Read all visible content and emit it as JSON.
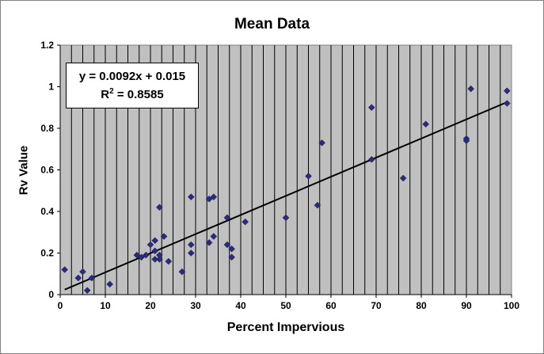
{
  "chart_data": {
    "type": "scatter",
    "title": "Mean Data",
    "xlabel": "Percent Impervious",
    "ylabel": "Rv Value",
    "xlim": [
      0,
      100
    ],
    "ylim": [
      0,
      1.2
    ],
    "x_ticks": [
      0,
      10,
      20,
      30,
      40,
      50,
      60,
      70,
      80,
      90,
      100
    ],
    "x_tick_labels": [
      "0",
      "10",
      "20",
      "30",
      "40",
      "50",
      "60",
      "70",
      "80",
      "90",
      "100"
    ],
    "y_ticks": [
      0,
      0.2,
      0.4,
      0.6,
      0.8,
      1.0,
      1.2
    ],
    "y_tick_labels": [
      "0",
      "0.2",
      "0.4",
      "0.6",
      "0.8",
      "1",
      "1.2"
    ],
    "grid": "vertical",
    "background_color": "#c0c0c0",
    "marker_color": "#2b2b7a",
    "trendline": {
      "equation": "y = 0.0092x + 0.015",
      "r_squared_label": "R",
      "r_squared_exponent": "2",
      "r_squared_value": " = 0.8585",
      "slope": 0.0092,
      "intercept": 0.015,
      "x_range": [
        1,
        99
      ]
    },
    "points": [
      {
        "x": 1,
        "y": 0.12
      },
      {
        "x": 4,
        "y": 0.08
      },
      {
        "x": 5,
        "y": 0.11
      },
      {
        "x": 6,
        "y": 0.02
      },
      {
        "x": 7,
        "y": 0.08
      },
      {
        "x": 11,
        "y": 0.05
      },
      {
        "x": 17,
        "y": 0.19
      },
      {
        "x": 18,
        "y": 0.18
      },
      {
        "x": 19,
        "y": 0.19
      },
      {
        "x": 20,
        "y": 0.24
      },
      {
        "x": 21,
        "y": 0.21
      },
      {
        "x": 21,
        "y": 0.26
      },
      {
        "x": 21,
        "y": 0.17
      },
      {
        "x": 22,
        "y": 0.19
      },
      {
        "x": 22,
        "y": 0.17
      },
      {
        "x": 22,
        "y": 0.42
      },
      {
        "x": 23,
        "y": 0.28
      },
      {
        "x": 24,
        "y": 0.16
      },
      {
        "x": 27,
        "y": 0.11
      },
      {
        "x": 29,
        "y": 0.47
      },
      {
        "x": 29,
        "y": 0.24
      },
      {
        "x": 29,
        "y": 0.2
      },
      {
        "x": 33,
        "y": 0.46
      },
      {
        "x": 33,
        "y": 0.25
      },
      {
        "x": 34,
        "y": 0.47
      },
      {
        "x": 34,
        "y": 0.28
      },
      {
        "x": 37,
        "y": 0.37
      },
      {
        "x": 37,
        "y": 0.24
      },
      {
        "x": 38,
        "y": 0.22
      },
      {
        "x": 38,
        "y": 0.18
      },
      {
        "x": 41,
        "y": 0.35
      },
      {
        "x": 50,
        "y": 0.37
      },
      {
        "x": 55,
        "y": 0.57
      },
      {
        "x": 57,
        "y": 0.43
      },
      {
        "x": 58,
        "y": 0.73
      },
      {
        "x": 69,
        "y": 0.9
      },
      {
        "x": 69,
        "y": 0.65
      },
      {
        "x": 76,
        "y": 0.56
      },
      {
        "x": 81,
        "y": 0.82
      },
      {
        "x": 90,
        "y": 0.75
      },
      {
        "x": 90,
        "y": 0.74
      },
      {
        "x": 91,
        "y": 0.99
      },
      {
        "x": 99,
        "y": 0.98
      },
      {
        "x": 99,
        "y": 0.92
      }
    ]
  }
}
